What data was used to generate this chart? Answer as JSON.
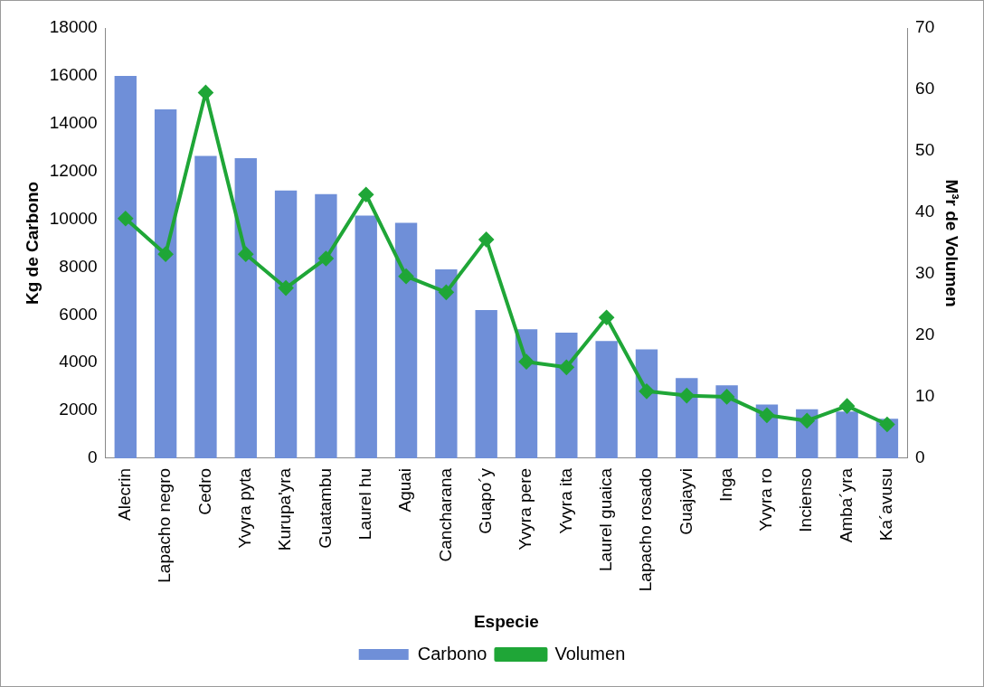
{
  "chart_data": {
    "type": "bar",
    "xlabel": "Especie",
    "ylabel": "Kg de Carbono",
    "y2label": "M³r de Volumen",
    "categories": [
      "Alecrin",
      "Lapacho negro",
      "Cedro",
      "Yvyra pyta",
      "Kurupa'yra",
      "Guatambu",
      "Laurel hu",
      "Aguai",
      "Cancharana",
      "Guapo´y",
      "Yvyra pere",
      "Yvyra ita",
      "Laurel guaica",
      "Lapacho rosado",
      "Guajayvi",
      "Inga",
      "Yvyra ro",
      "Incienso",
      "Amba´yra",
      "Ka´avusu"
    ],
    "series": [
      {
        "name": "Carbono",
        "color": "#6f8fd8",
        "values": [
          16000,
          14600,
          12650,
          12550,
          11200,
          11050,
          10150,
          9850,
          7900,
          6200,
          5400,
          5250,
          4900,
          4550,
          3350,
          3050,
          2250,
          2050,
          1950,
          1650
        ]
      },
      {
        "name": "Volumen",
        "type": "line",
        "axis": "y2",
        "color": "#1fa637",
        "marker": "diamond",
        "values": [
          39.0,
          33.2,
          59.5,
          33.2,
          27.7,
          32.5,
          42.9,
          29.6,
          27.0,
          35.6,
          15.7,
          14.8,
          22.9,
          10.9,
          10.2,
          10.0,
          7.0,
          6.1,
          8.5,
          5.5
        ]
      }
    ],
    "ylim": [
      0,
      18000
    ],
    "yticks": [
      0,
      2000,
      4000,
      6000,
      8000,
      10000,
      12000,
      14000,
      16000,
      18000
    ],
    "y2lim": [
      0,
      70
    ],
    "y2ticks": [
      0,
      10,
      20,
      30,
      40,
      50,
      60,
      70
    ],
    "grid": false,
    "legend": "bottom"
  }
}
